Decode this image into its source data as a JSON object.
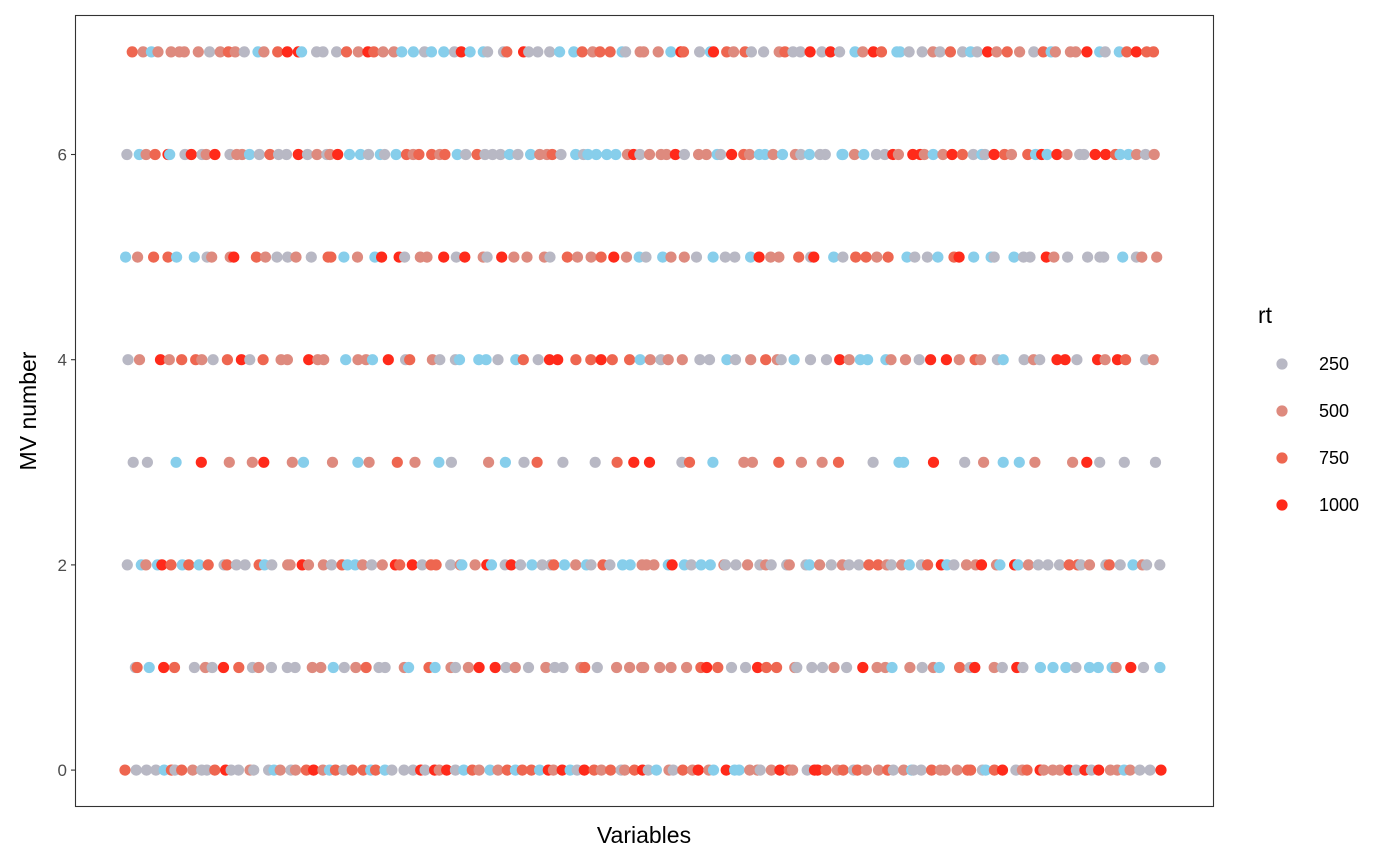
{
  "chart_data": {
    "type": "scatter",
    "title": "",
    "xlabel": "Variables",
    "ylabel": "MV number",
    "x_ticks_shown": false,
    "ylim": [
      -0.35,
      7.35
    ],
    "y_ticks": [
      0,
      2,
      4,
      6
    ],
    "y_tick_labels": [
      "0",
      "2",
      "4",
      "6"
    ],
    "y_levels": [
      0,
      1,
      2,
      3,
      4,
      5,
      6,
      7
    ],
    "grid": false,
    "panel_border": true,
    "legend": {
      "title": "rt",
      "position": "right",
      "entries": [
        {
          "label": "250",
          "value": 250,
          "color": "#b8b8c4"
        },
        {
          "label": "500",
          "value": 500,
          "color": "#de8a7e"
        },
        {
          "label": "750",
          "value": 750,
          "color": "#ee6650"
        },
        {
          "label": "1000",
          "value": 1000,
          "color": "#ff2a1a"
        }
      ]
    },
    "out_of_range_color": "#87ceeb",
    "points_per_level": [
      129,
      88,
      114,
      48,
      84,
      86,
      117,
      106
    ],
    "note": "x positions are variable indices (unlabeled axis); rt values are estimated from color"
  }
}
